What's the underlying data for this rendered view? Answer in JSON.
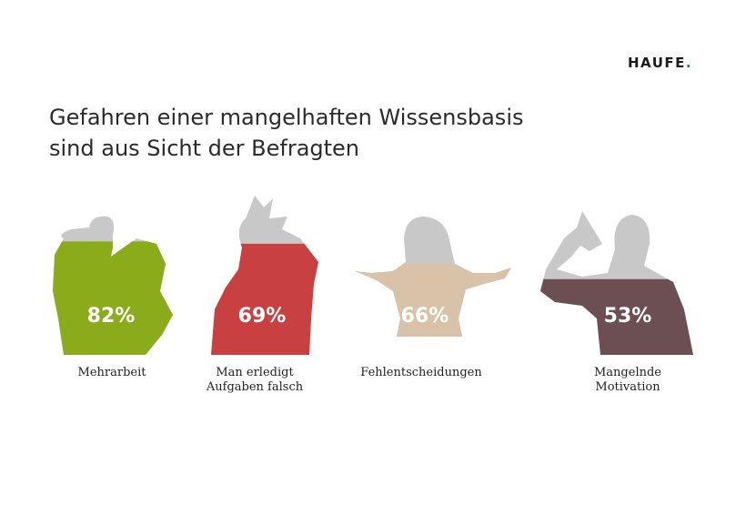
{
  "logo": "HAUFE",
  "title_lines": [
    "Gefahren einer mangelhaften Wissensbasis",
    "sind aus Sicht der Befragten"
  ],
  "chart_data": {
    "type": "pictogram",
    "title": "Gefahren einer mangelhaften Wissensbasis sind aus Sicht der Befragten",
    "categories": [
      "Mehrarbeit",
      "Man erledigt Aufgaben falsch",
      "Fehlentscheidungen",
      "Mangelnde Motivation"
    ],
    "label_lines": [
      [
        "Mehrarbeit"
      ],
      [
        "Man erledigt",
        "Aufgaben falsch"
      ],
      [
        "Fehlentscheidungen"
      ],
      [
        "Mangelnde",
        "Motivation"
      ]
    ],
    "values": [
      82,
      69,
      66,
      53
    ],
    "value_labels": [
      "82%",
      "69%",
      "66%",
      "53%"
    ],
    "unit": "%",
    "colors": [
      "#8aab1a",
      "#c94040",
      "#d8c3a8",
      "#6b4f52"
    ],
    "empty_color": "#c8c8c8"
  }
}
